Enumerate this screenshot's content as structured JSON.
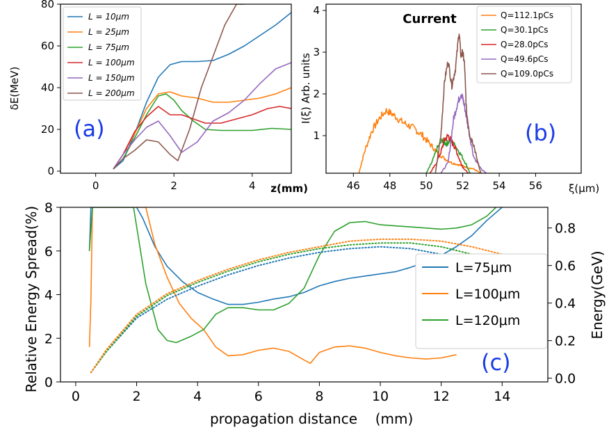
{
  "chart_data": [
    {
      "id": "a",
      "type": "line",
      "panel_label": "(a)",
      "ylabel": "δE(MeV)",
      "xlabel": "z(mm)",
      "xlim": [
        -0.9,
        5.0
      ],
      "ylim": [
        -1,
        80
      ],
      "xticks": [
        0,
        2,
        4
      ],
      "yticks": [
        0,
        20,
        40,
        60,
        80
      ],
      "legend_position": "top-left",
      "series": [
        {
          "name": "L = 10μm",
          "color": "#1f77b4",
          "x": [
            0.45,
            0.7,
            1.0,
            1.3,
            1.6,
            1.9,
            2.2,
            2.6,
            3.0,
            3.4,
            3.8,
            4.2,
            4.6,
            5.0
          ],
          "y": [
            1,
            5,
            18,
            33,
            45,
            51,
            52.5,
            52.5,
            53,
            56,
            60,
            65,
            70,
            76
          ]
        },
        {
          "name": "L = 25μm",
          "color": "#ff7f0e",
          "x": [
            0.45,
            0.7,
            1.0,
            1.3,
            1.6,
            1.9,
            2.2,
            2.6,
            3.0,
            3.4,
            3.8,
            4.2,
            4.6,
            5.0
          ],
          "y": [
            1,
            8,
            18,
            30,
            37,
            38,
            36,
            35,
            33,
            33,
            34,
            35,
            37,
            40
          ]
        },
        {
          "name": "L = 75μm",
          "color": "#2ca02c",
          "x": [
            0.45,
            0.7,
            1.0,
            1.3,
            1.6,
            1.8,
            2.0,
            2.2,
            2.5,
            2.8,
            3.2,
            3.6,
            4.0,
            4.5,
            5.0
          ],
          "y": [
            1,
            6,
            16,
            27,
            36,
            37,
            34,
            29,
            24,
            20,
            19.5,
            19.5,
            19.5,
            20.5,
            20
          ]
        },
        {
          "name": "L = 100μm",
          "color": "#d62728",
          "x": [
            0.45,
            0.7,
            1.0,
            1.3,
            1.6,
            1.9,
            2.2,
            2.5,
            2.8,
            3.2,
            3.6,
            4.0,
            4.4,
            4.7,
            5.0
          ],
          "y": [
            1,
            8,
            19,
            26,
            31,
            27,
            27,
            25,
            23,
            23,
            25,
            27,
            30,
            31,
            30
          ]
        },
        {
          "name": "L = 150μm",
          "color": "#9467bd",
          "x": [
            0.45,
            0.7,
            1.0,
            1.3,
            1.6,
            1.9,
            2.2,
            2.6,
            3.0,
            3.4,
            3.8,
            4.2,
            4.6,
            5.0
          ],
          "y": [
            1,
            8,
            15,
            21,
            24,
            17,
            9,
            14,
            24,
            28,
            34,
            42,
            49,
            52
          ]
        },
        {
          "name": "L = 200μm",
          "color": "#8c564b",
          "x": [
            0.45,
            0.7,
            1.0,
            1.3,
            1.6,
            1.9,
            2.1,
            2.4,
            2.7,
            3.0,
            3.3,
            3.6,
            3.8
          ],
          "y": [
            1,
            6,
            10,
            15,
            14,
            8,
            5,
            20,
            40,
            55,
            70,
            80,
            80
          ]
        }
      ]
    },
    {
      "id": "b",
      "type": "line",
      "panel_label": "(b)",
      "title": "Current",
      "ylabel": "I(ξ) Arb. units",
      "xlabel": "ξ(μm)",
      "xlim": [
        44.5,
        58.5
      ],
      "ylim": [
        0.1,
        4.15
      ],
      "xticks": [
        46,
        48,
        50,
        52,
        54,
        56
      ],
      "yticks": [
        1,
        2,
        3,
        4
      ],
      "legend_position": "top-right",
      "series": [
        {
          "name": "Q=112.1pCs",
          "color": "#ff7f0e",
          "x": [
            46.3,
            46.6,
            47.0,
            47.4,
            47.8,
            48.2,
            48.6,
            49.0,
            49.4,
            49.8,
            50.2,
            50.6,
            51.0,
            51.4,
            51.8,
            52.2,
            52.6,
            53.0
          ],
          "y": [
            0.1,
            0.6,
            1.1,
            1.4,
            1.6,
            1.5,
            1.35,
            1.25,
            1.15,
            1.0,
            0.8,
            0.6,
            0.45,
            0.35,
            0.3,
            0.25,
            0.2,
            0.1
          ]
        },
        {
          "name": "Q=30.1pCs",
          "color": "#2ca02c",
          "x": [
            50.0,
            50.3,
            50.6,
            50.9,
            51.1,
            51.3,
            51.6,
            51.9,
            52.2,
            52.4
          ],
          "y": [
            0.1,
            0.35,
            0.7,
            0.9,
            0.8,
            0.9,
            0.75,
            0.55,
            0.3,
            0.1
          ]
        },
        {
          "name": "Q=28.0pCs",
          "color": "#d62728",
          "x": [
            50.2,
            50.5,
            50.8,
            51.0,
            51.2,
            51.4,
            51.6,
            51.8,
            52.0,
            52.3
          ],
          "y": [
            0.1,
            0.3,
            0.6,
            0.9,
            1.0,
            0.85,
            0.7,
            0.45,
            0.25,
            0.1
          ]
        },
        {
          "name": "Q=49.6pCs",
          "color": "#9467bd",
          "x": [
            50.8,
            51.2,
            51.5,
            51.7,
            51.9,
            52.0,
            52.1,
            52.3,
            52.6,
            53.0,
            53.3
          ],
          "y": [
            0.1,
            0.35,
            1.4,
            1.75,
            2.0,
            1.9,
            1.7,
            1.2,
            0.5,
            0.2,
            0.1
          ]
        },
        {
          "name": "Q=109.0pCs",
          "color": "#8c564b",
          "x": [
            50.5,
            50.8,
            51.0,
            51.2,
            51.4,
            51.6,
            51.8,
            51.9,
            52.0,
            52.1,
            52.2,
            52.4,
            52.6,
            52.8,
            53.0
          ],
          "y": [
            0.1,
            1.0,
            2.3,
            2.8,
            2.2,
            2.6,
            3.5,
            2.9,
            3.0,
            2.7,
            1.6,
            1.0,
            0.8,
            0.4,
            0.1
          ]
        }
      ]
    },
    {
      "id": "c",
      "type": "line",
      "panel_label": "(c)",
      "xlabel": "propagation distance",
      "xlabel_unit": "(mm)",
      "ylabel": "Relative Energy Spread(%)",
      "ylabel_right": "Energy(GeV)",
      "xlim": [
        -0.5,
        15.5
      ],
      "ylim": [
        0,
        8
      ],
      "ylim_right": [
        -0.02,
        0.91
      ],
      "xticks": [
        0,
        2,
        4,
        6,
        8,
        10,
        12,
        14
      ],
      "yticks": [
        0,
        2,
        4,
        6,
        8
      ],
      "yticks_right": [
        0.0,
        0.2,
        0.4,
        0.6,
        0.8
      ],
      "legend_position": "center-right",
      "series": [
        {
          "name": "L=75μm",
          "color": "#1f77b4",
          "axis": "left",
          "style": "solid",
          "x": [
            0.45,
            0.5,
            0.6,
            2.0,
            2.2,
            2.6,
            3.0,
            3.5,
            4.0,
            4.5,
            5.0,
            5.5,
            6.0,
            6.5,
            7.0,
            7.5,
            8.0,
            8.5,
            9.0,
            9.5,
            10.0,
            10.5,
            11.0,
            11.5,
            12.0,
            12.5,
            13.0,
            13.5,
            14.0
          ],
          "y": [
            6,
            8,
            8,
            8,
            7.5,
            6.2,
            5.3,
            4.6,
            4.1,
            3.8,
            3.55,
            3.55,
            3.65,
            3.8,
            3.9,
            4.1,
            4.4,
            4.6,
            4.75,
            4.85,
            4.95,
            5.05,
            5.25,
            5.5,
            5.8,
            6.2,
            6.7,
            7.4,
            8
          ]
        },
        {
          "name": "L=100μm",
          "color": "#ff7f0e",
          "axis": "left",
          "style": "solid",
          "x": [
            0.45,
            0.5,
            0.55,
            2.3,
            2.6,
            3.0,
            3.4,
            3.8,
            4.2,
            4.6,
            5.0,
            5.5,
            6.0,
            6.5,
            7.0,
            7.5,
            7.7,
            8.0,
            8.5,
            9.0,
            9.5,
            10.0,
            10.5,
            11.0,
            11.5,
            12.0,
            12.5
          ],
          "y": [
            1.6,
            3.8,
            8,
            8,
            6.3,
            4.8,
            3.6,
            2.9,
            2.4,
            1.6,
            1.2,
            1.25,
            1.45,
            1.55,
            1.4,
            1.0,
            0.85,
            1.35,
            1.6,
            1.65,
            1.55,
            1.35,
            1.2,
            1.1,
            1.05,
            1.1,
            1.25
          ]
        },
        {
          "name": "L=120μm",
          "color": "#2ca02c",
          "axis": "left",
          "style": "solid",
          "x": [
            0.45,
            0.5,
            0.55,
            1.9,
            2.3,
            2.7,
            3.0,
            3.3,
            3.8,
            4.2,
            4.6,
            5.0,
            5.5,
            6.0,
            6.5,
            7.0,
            7.5,
            8.0,
            8.5,
            9.0,
            9.5,
            10.0,
            10.5,
            11.0,
            11.5,
            12.0,
            12.5,
            13.0,
            13.5,
            13.8
          ],
          "y": [
            6.0,
            7.0,
            8,
            8,
            4.5,
            2.4,
            1.9,
            1.8,
            2.1,
            2.4,
            3.1,
            3.4,
            3.4,
            3.3,
            3.3,
            3.6,
            4.3,
            5.8,
            6.9,
            7.3,
            7.35,
            7.2,
            7.15,
            7.1,
            7.05,
            7.0,
            7.05,
            7.2,
            7.6,
            8
          ]
        },
        {
          "name": "",
          "color": "#1f77b4",
          "axis": "right",
          "style": "dotted",
          "x": [
            0.5,
            1,
            2,
            3,
            4,
            5,
            6,
            7,
            8,
            9,
            10,
            11,
            12,
            13,
            14
          ],
          "y": [
            0.03,
            0.14,
            0.32,
            0.42,
            0.49,
            0.55,
            0.6,
            0.64,
            0.67,
            0.69,
            0.7,
            0.69,
            0.66,
            0.6,
            0.52
          ]
        },
        {
          "name": "",
          "color": "#2ca02c",
          "axis": "right",
          "style": "dotted",
          "x": [
            0.5,
            1,
            2,
            3,
            4,
            5,
            6,
            7,
            8,
            9,
            10,
            11,
            12,
            13,
            14,
            14.3
          ],
          "y": [
            0.03,
            0.14,
            0.33,
            0.44,
            0.51,
            0.57,
            0.62,
            0.66,
            0.69,
            0.71,
            0.72,
            0.72,
            0.7,
            0.66,
            0.6,
            0.57
          ]
        },
        {
          "name": "",
          "color": "#ff7f0e",
          "axis": "right",
          "style": "dotted",
          "x": [
            0.5,
            1,
            2,
            3,
            4,
            5,
            6,
            7,
            8,
            9,
            10,
            11,
            12,
            13,
            14,
            14.6
          ],
          "y": [
            0.03,
            0.15,
            0.34,
            0.45,
            0.52,
            0.58,
            0.63,
            0.67,
            0.7,
            0.73,
            0.74,
            0.74,
            0.73,
            0.7,
            0.66,
            0.63
          ]
        }
      ]
    }
  ]
}
